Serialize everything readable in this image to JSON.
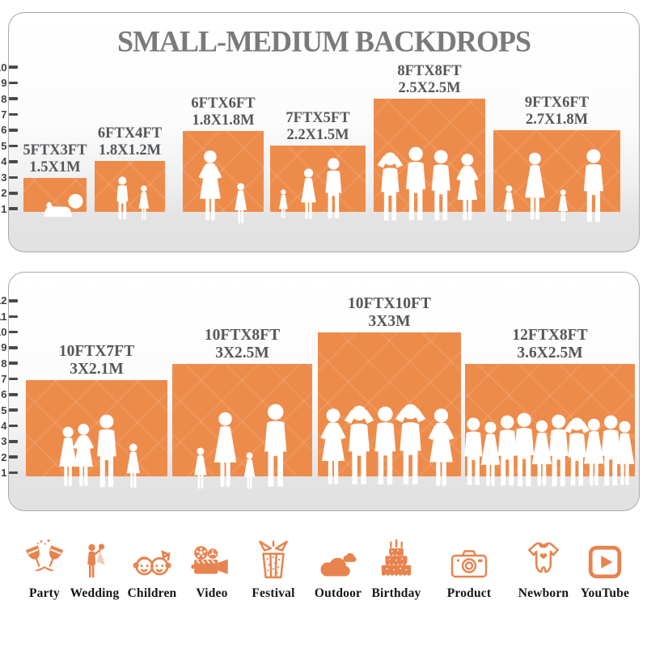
{
  "title": "SMALL-MEDIUM BACKDROPS",
  "colors": {
    "bar_orange": "#ED8B4B",
    "icon_orange": "#E8834E",
    "title_gray": "#7A7A7B",
    "label_gray": "#55565A",
    "tick_gray": "#3F3F3F",
    "card_bottom_gray": "#E2E2E2"
  },
  "panels": [
    {
      "name": "small-medium-top",
      "ruler_ticks": [
        "1",
        "2",
        "3",
        "4",
        "5",
        "6",
        "7",
        "8",
        "9",
        "10"
      ],
      "bars": [
        {
          "size_ft": "5FTX3FT",
          "size_m": "1.5X1M"
        },
        {
          "size_ft": "6FTX4FT",
          "size_m": "1.8X1.2M"
        },
        {
          "size_ft": "6FTX6FT",
          "size_m": "1.8X1.8M"
        },
        {
          "size_ft": "7FTX5FT",
          "size_m": "2.2X1.5M"
        },
        {
          "size_ft": "8FTX8FT",
          "size_m": "2.5X2.5M"
        },
        {
          "size_ft": "9FTX6FT",
          "size_m": "2.7X1.8M"
        }
      ]
    },
    {
      "name": "small-medium-bottom",
      "ruler_ticks": [
        "1",
        "2",
        "3",
        "4",
        "5",
        "6",
        "7",
        "8",
        "9",
        "10",
        "11",
        "12"
      ],
      "bars": [
        {
          "size_ft": "10FTX7FT",
          "size_m": "3X2.1M"
        },
        {
          "size_ft": "10FTX8FT",
          "size_m": "3X2.5M"
        },
        {
          "size_ft": "10FTX10FT",
          "size_m": "3X3M"
        },
        {
          "size_ft": "12FTX8FT",
          "size_m": "3.6X2.5M"
        }
      ]
    }
  ],
  "categories": [
    {
      "label": "Party",
      "icon": "party-icon"
    },
    {
      "label": "Wedding",
      "icon": "wedding-icon"
    },
    {
      "label": "Children",
      "icon": "children-icon"
    },
    {
      "label": "Video",
      "icon": "video-icon"
    },
    {
      "label": "Festival",
      "icon": "festival-icon"
    },
    {
      "label": "Outdoor",
      "icon": "outdoor-icon"
    },
    {
      "label": "Birthday",
      "icon": "birthday-icon"
    },
    {
      "label": "Product",
      "icon": "product-icon"
    },
    {
      "label": "Newborn",
      "icon": "newborn-icon"
    },
    {
      "label": "YouTube",
      "icon": "youtube-icon"
    }
  ],
  "chart_data": [
    {
      "type": "bar",
      "title": "SMALL-MEDIUM BACKDROPS",
      "categories": [
        "5FTX3FT",
        "6FTX4FT",
        "6FTX6FT",
        "7FTX5FT",
        "8FTX8FT",
        "9FTX6FT"
      ],
      "values": [
        3,
        4,
        6,
        5,
        8,
        6
      ],
      "bar_widths_ft": [
        5,
        6,
        6,
        7,
        8,
        9
      ],
      "metric_labels": [
        "1.5X1M",
        "1.8X1.2M",
        "1.8X1.8M",
        "2.2X1.5M",
        "2.5X2.5M",
        "2.7X1.8M"
      ],
      "xlabel": "",
      "ylabel": "feet (ruler)",
      "ylim": [
        0,
        10
      ],
      "legend": false,
      "grid": false
    },
    {
      "type": "bar",
      "title": "",
      "categories": [
        "10FTX7FT",
        "10FTX8FT",
        "10FTX10FT",
        "12FTX8FT"
      ],
      "values": [
        7,
        8,
        10,
        8
      ],
      "bar_widths_ft": [
        10,
        10,
        10,
        12
      ],
      "metric_labels": [
        "3X2.1M",
        "3X2.5M",
        "3X3M",
        "3.6X2.5M"
      ],
      "xlabel": "",
      "ylabel": "feet (ruler)",
      "ylim": [
        0,
        12
      ],
      "legend": false,
      "grid": false
    }
  ]
}
